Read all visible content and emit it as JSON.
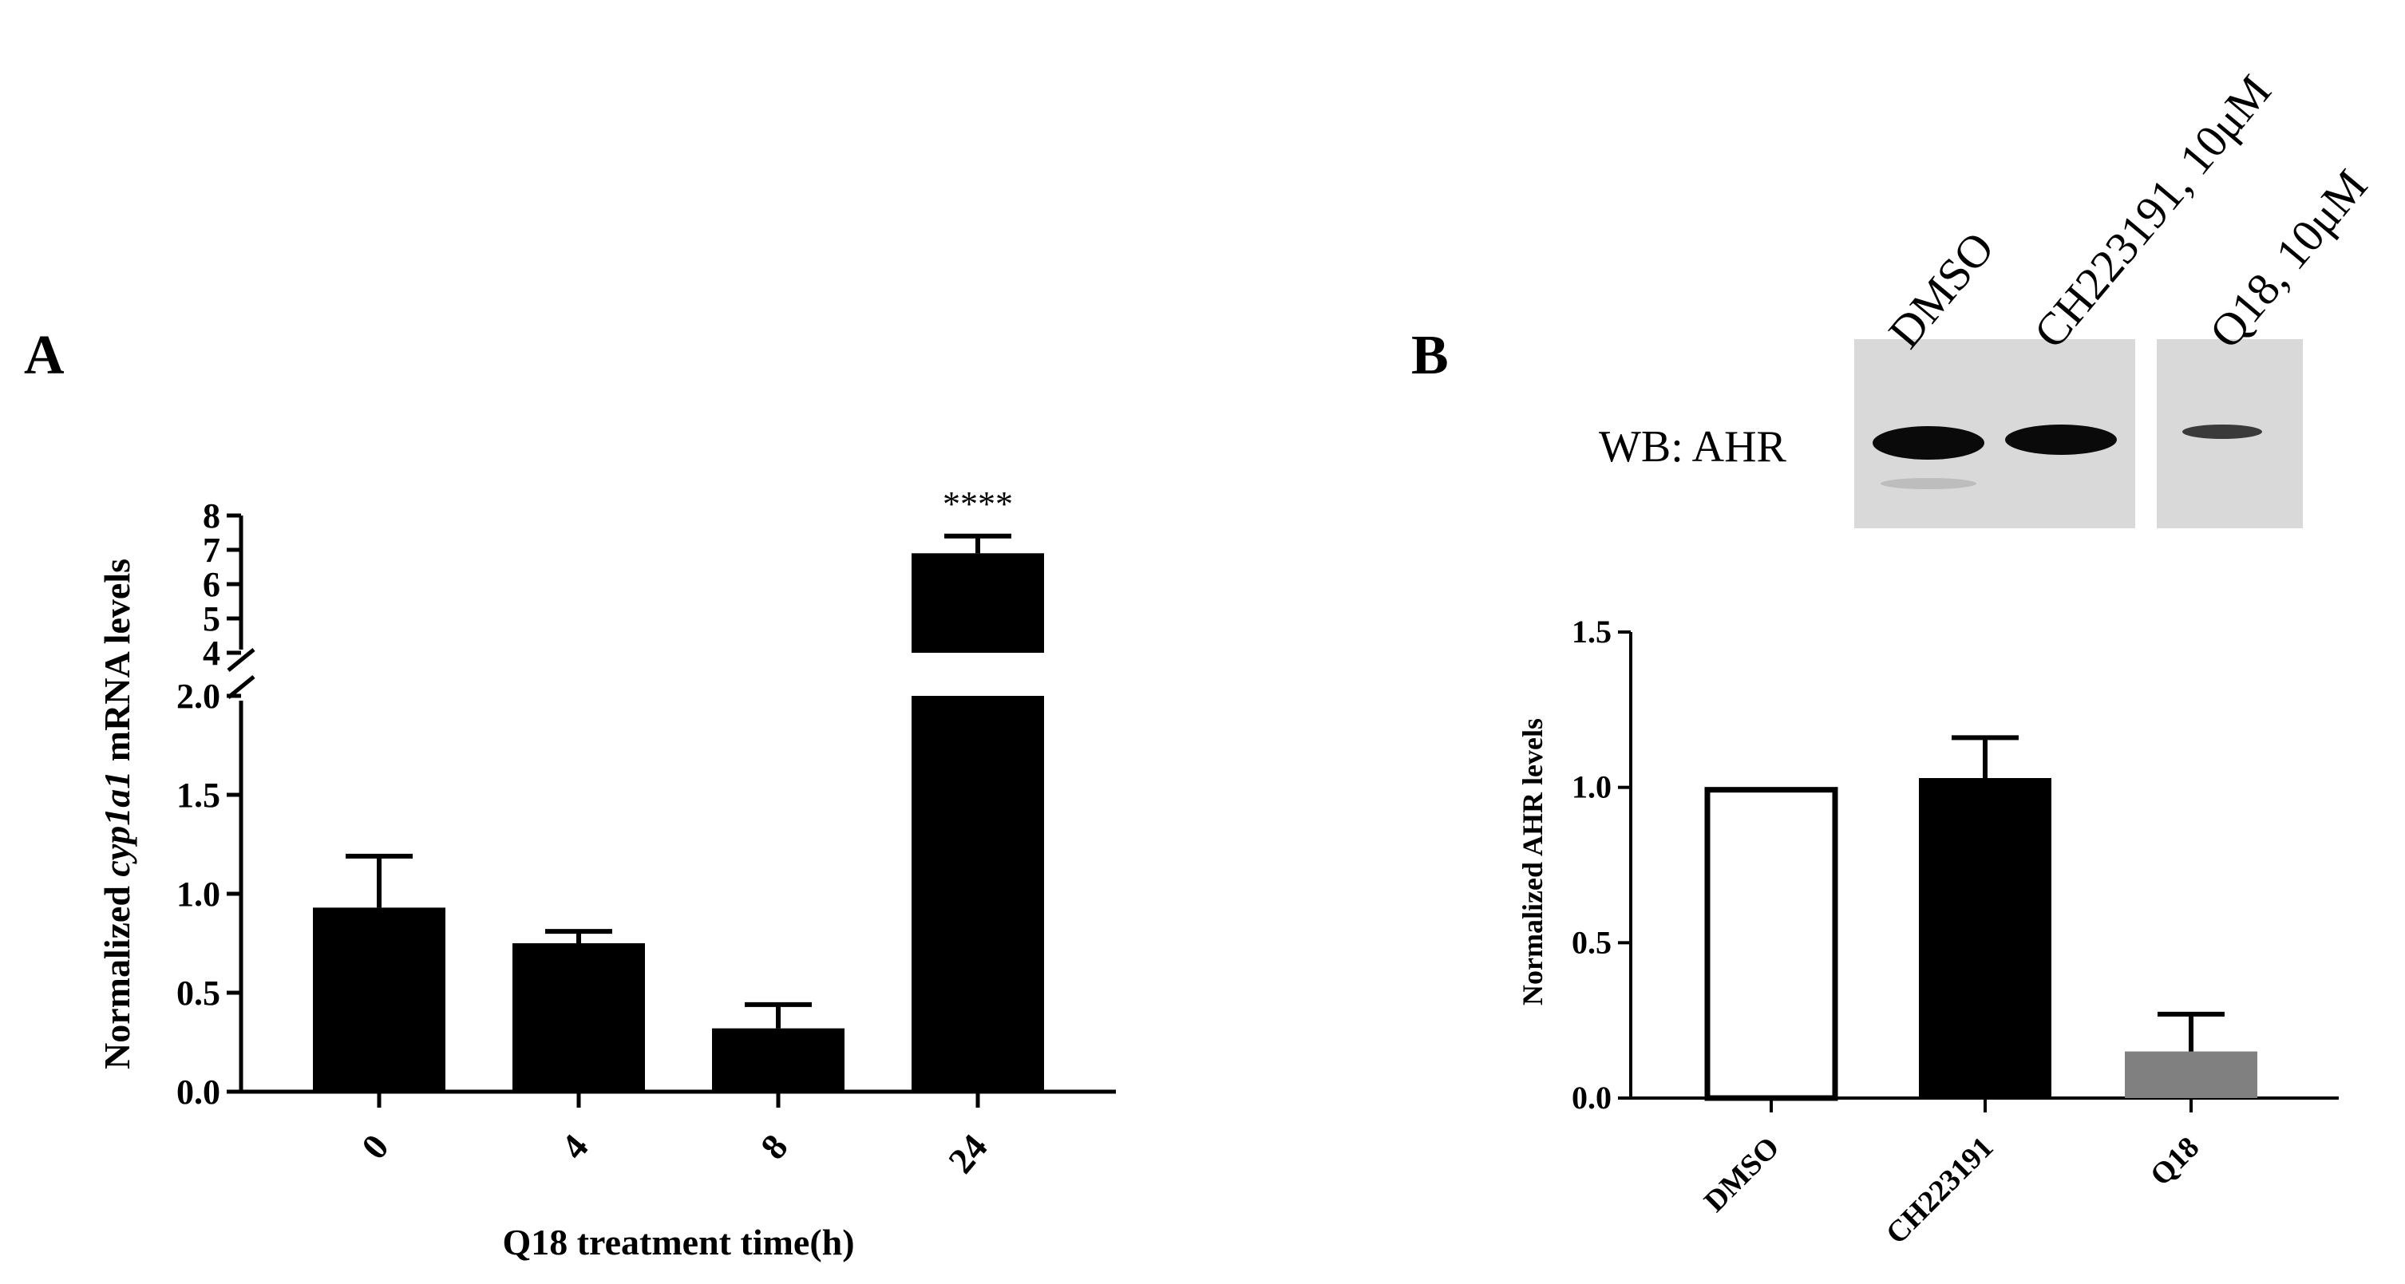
{
  "panels": {
    "a": {
      "label": "A"
    },
    "b": {
      "label": "B"
    }
  },
  "blot": {
    "label": "WB: AHR",
    "lanes": [
      "DMSO",
      "CH223191, 10μM",
      "Q18, 10μM"
    ]
  },
  "colors": {
    "bar_black": "#000000",
    "bar_white": "#ffffff",
    "bar_gray": "#808080",
    "blot_bg": "#d9d9d9"
  },
  "chart_data": [
    {
      "type": "bar",
      "panel": "A",
      "xlabel": "Q18 treatment time(h)",
      "ylabel_parts": [
        "Normalized ",
        "cyp1a1",
        " mRNA levels"
      ],
      "categories": [
        "0",
        "4",
        "8",
        "24"
      ],
      "values": [
        0.93,
        0.75,
        0.32,
        6.9
      ],
      "errors": [
        0.26,
        0.06,
        0.12,
        0.5
      ],
      "axis_break": {
        "lower": [
          0,
          2.0
        ],
        "upper": [
          4,
          8
        ]
      },
      "yticks_lower": [
        "0.0",
        "0.5",
        "1.0",
        "1.5",
        "2.0"
      ],
      "yticks_upper": [
        "4",
        "5",
        "6",
        "7",
        "8"
      ],
      "annotations": [
        {
          "category": "24",
          "text": "****"
        }
      ],
      "colors": [
        "#000000",
        "#000000",
        "#000000",
        "#000000"
      ]
    },
    {
      "type": "bar",
      "panel": "B",
      "xlabel": "",
      "ylabel": "Normalized AHR levels",
      "categories": [
        "DMSO",
        "CH223191",
        "Q18"
      ],
      "values": [
        1.0,
        1.03,
        0.15
      ],
      "errors": [
        0,
        0.13,
        0.12
      ],
      "ylim": [
        0,
        1.5
      ],
      "yticks": [
        "0.0",
        "0.5",
        "1.0",
        "1.5"
      ],
      "colors": [
        "#ffffff",
        "#000000",
        "#808080"
      ]
    }
  ]
}
